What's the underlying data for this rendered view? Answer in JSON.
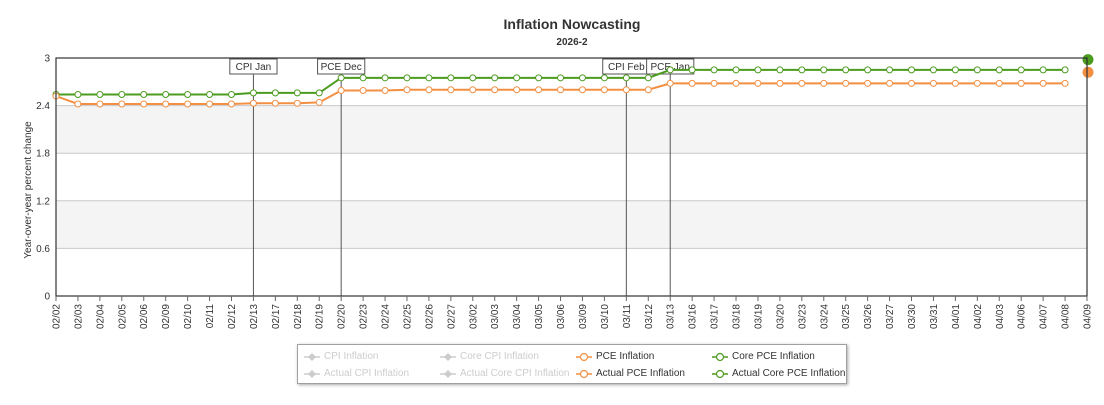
{
  "chart_data": {
    "type": "line",
    "title": "Inflation Nowcasting",
    "subtitle": "2026-2",
    "ylabel": "Year-over-year percent change",
    "xlabel": "",
    "ylim": [
      0,
      3
    ],
    "yticks": [
      "0",
      "0.6",
      "1.2",
      "1.8",
      "2.4",
      "3"
    ],
    "categories": [
      "02/02",
      "02/03",
      "02/04",
      "02/05",
      "02/06",
      "02/09",
      "02/10",
      "02/11",
      "02/12",
      "02/13",
      "02/17",
      "02/18",
      "02/19",
      "02/20",
      "02/23",
      "02/24",
      "02/25",
      "02/26",
      "02/27",
      "03/02",
      "03/03",
      "03/04",
      "03/05",
      "03/06",
      "03/09",
      "03/10",
      "03/11",
      "03/12",
      "03/13",
      "03/16",
      "03/17",
      "03/18",
      "03/19",
      "03/20",
      "03/23",
      "03/24",
      "03/25",
      "03/26",
      "03/27",
      "03/30",
      "03/31",
      "04/01",
      "04/02",
      "04/03",
      "04/06",
      "04/07",
      "04/08",
      "04/09"
    ],
    "series": [
      {
        "name": "Core PCE Inflation",
        "color": "#4b9b1e",
        "values": [
          2.54,
          2.54,
          2.54,
          2.54,
          2.54,
          2.54,
          2.54,
          2.54,
          2.54,
          2.56,
          2.56,
          2.56,
          2.56,
          2.75,
          2.75,
          2.75,
          2.75,
          2.75,
          2.75,
          2.75,
          2.75,
          2.75,
          2.75,
          2.75,
          2.75,
          2.75,
          2.75,
          2.75,
          2.85,
          2.85,
          2.85,
          2.85,
          2.85,
          2.85,
          2.85,
          2.85,
          2.85,
          2.85,
          2.85,
          2.85,
          2.85,
          2.85,
          2.85,
          2.85,
          2.85,
          2.85,
          2.85,
          null
        ]
      },
      {
        "name": "PCE Inflation",
        "color": "#f28f43",
        "values": [
          2.52,
          2.42,
          2.42,
          2.42,
          2.42,
          2.42,
          2.42,
          2.42,
          2.42,
          2.43,
          2.43,
          2.43,
          2.44,
          2.59,
          2.59,
          2.59,
          2.6,
          2.6,
          2.6,
          2.6,
          2.6,
          2.6,
          2.6,
          2.6,
          2.6,
          2.6,
          2.6,
          2.6,
          2.68,
          2.68,
          2.68,
          2.68,
          2.68,
          2.68,
          2.68,
          2.68,
          2.68,
          2.68,
          2.68,
          2.68,
          2.68,
          2.68,
          2.68,
          2.68,
          2.68,
          2.68,
          2.68,
          null
        ]
      }
    ],
    "actual_points": [
      {
        "name": "Actual Core PCE Inflation",
        "category": "04/09",
        "value": 2.98,
        "color": "#4b9b1e"
      },
      {
        "name": "Actual PCE Inflation",
        "category": "04/09",
        "value": 2.82,
        "color": "#f28f43"
      }
    ],
    "release_markers": [
      {
        "label": "CPI Jan",
        "category": "02/13"
      },
      {
        "label": "PCE Dec",
        "category": "02/20"
      },
      {
        "label": "CPI Feb",
        "category": "03/11"
      },
      {
        "label": "PCE Jan",
        "category": "03/13"
      }
    ],
    "grid": true,
    "legend_position": "bottom-center"
  },
  "legend": {
    "items": [
      {
        "name": "CPI Inflation",
        "color": "#cccccc",
        "marker": "diamond",
        "active": false
      },
      {
        "name": "Core CPI Inflation",
        "color": "#cccccc",
        "marker": "diamond",
        "active": false
      },
      {
        "name": "PCE Inflation",
        "color": "#f28f43",
        "marker": "circle",
        "active": true
      },
      {
        "name": "Core PCE Inflation",
        "color": "#4b9b1e",
        "marker": "circle",
        "active": true
      },
      {
        "name": "Actual CPI Inflation",
        "color": "#cccccc",
        "marker": "diamond",
        "active": false
      },
      {
        "name": "Actual Core CPI Inflation",
        "color": "#cccccc",
        "marker": "diamond",
        "active": false
      },
      {
        "name": "Actual PCE Inflation",
        "color": "#f28f43",
        "marker": "circle",
        "active": true
      },
      {
        "name": "Actual Core PCE Inflation",
        "color": "#4b9b1e",
        "marker": "circle",
        "active": true
      }
    ]
  }
}
